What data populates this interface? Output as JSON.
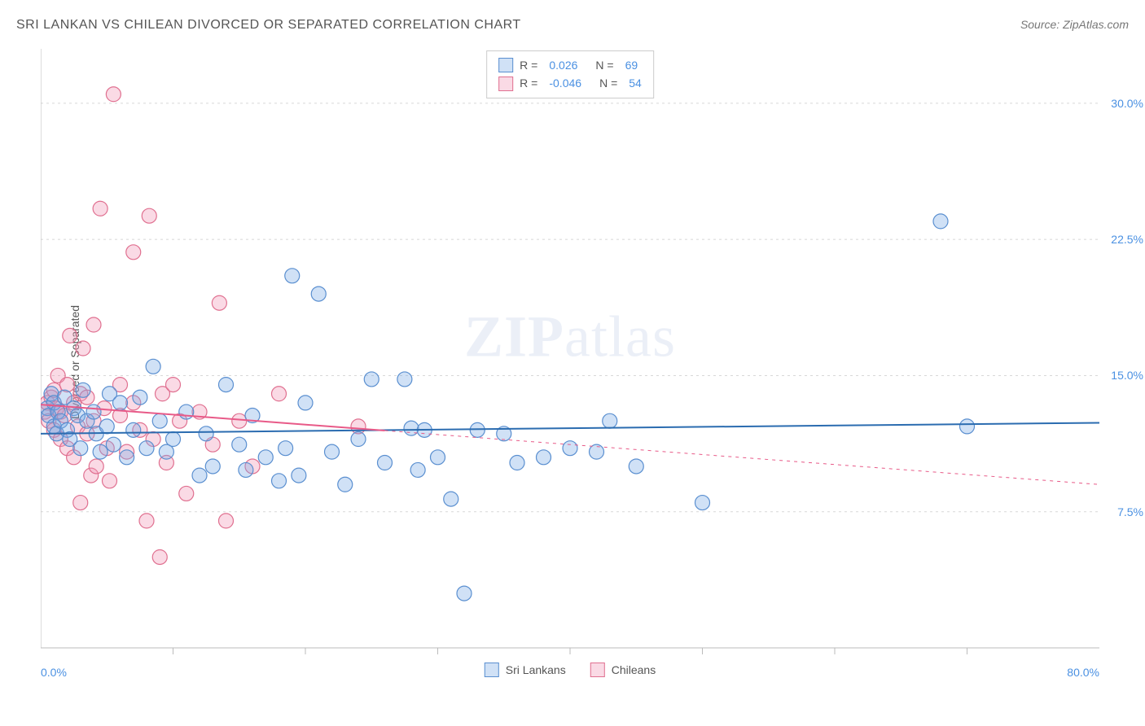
{
  "title": "SRI LANKAN VS CHILEAN DIVORCED OR SEPARATED CORRELATION CHART",
  "source": "Source: ZipAtlas.com",
  "watermark_bold": "ZIP",
  "watermark_rest": "atlas",
  "ylabel": "Divorced or Separated",
  "chart": {
    "type": "scatter",
    "xlim": [
      0,
      80
    ],
    "ylim": [
      0,
      33
    ],
    "x_min_label": "0.0%",
    "x_max_label": "80.0%",
    "x_tick_positions": [
      10,
      20,
      30,
      40,
      50,
      60,
      70
    ],
    "y_ticks": [
      {
        "value": 7.5,
        "label": "7.5%"
      },
      {
        "value": 15.0,
        "label": "15.0%"
      },
      {
        "value": 22.5,
        "label": "22.5%"
      },
      {
        "value": 30.0,
        "label": "30.0%"
      }
    ],
    "background_color": "#ffffff",
    "grid_color": "#d8d8d8",
    "axis_color": "#bbbbbb",
    "marker_radius": 9,
    "marker_stroke_width": 1.2,
    "series": [
      {
        "name": "Sri Lankans",
        "fill_color": "rgba(120,170,230,0.35)",
        "stroke_color": "#5a8fd0",
        "r_value": "0.026",
        "n_value": "69",
        "trend": {
          "x1": 0,
          "y1": 11.8,
          "x2": 80,
          "y2": 12.4,
          "solid_to": 80,
          "color": "#2b6cb0",
          "width": 2
        },
        "points": [
          [
            0.5,
            13.2
          ],
          [
            0.6,
            12.8
          ],
          [
            0.8,
            14.0
          ],
          [
            1.0,
            13.5
          ],
          [
            1.0,
            12.2
          ],
          [
            1.2,
            11.8
          ],
          [
            1.3,
            13.0
          ],
          [
            1.5,
            12.5
          ],
          [
            1.8,
            13.8
          ],
          [
            2.0,
            12.0
          ],
          [
            2.2,
            11.5
          ],
          [
            2.5,
            13.2
          ],
          [
            2.8,
            12.8
          ],
          [
            3.0,
            11.0
          ],
          [
            3.2,
            14.2
          ],
          [
            3.5,
            12.5
          ],
          [
            4.0,
            13.0
          ],
          [
            4.2,
            11.8
          ],
          [
            4.5,
            10.8
          ],
          [
            5.0,
            12.2
          ],
          [
            5.2,
            14.0
          ],
          [
            5.5,
            11.2
          ],
          [
            6.0,
            13.5
          ],
          [
            6.5,
            10.5
          ],
          [
            7.0,
            12.0
          ],
          [
            7.5,
            13.8
          ],
          [
            8.0,
            11.0
          ],
          [
            8.5,
            15.5
          ],
          [
            9.0,
            12.5
          ],
          [
            9.5,
            10.8
          ],
          [
            10.0,
            11.5
          ],
          [
            11.0,
            13.0
          ],
          [
            12.0,
            9.5
          ],
          [
            12.5,
            11.8
          ],
          [
            13.0,
            10.0
          ],
          [
            14.0,
            14.5
          ],
          [
            15.0,
            11.2
          ],
          [
            15.5,
            9.8
          ],
          [
            16.0,
            12.8
          ],
          [
            17.0,
            10.5
          ],
          [
            18.0,
            9.2
          ],
          [
            18.5,
            11.0
          ],
          [
            19.0,
            20.5
          ],
          [
            19.5,
            9.5
          ],
          [
            20.0,
            13.5
          ],
          [
            21.0,
            19.5
          ],
          [
            22.0,
            10.8
          ],
          [
            23.0,
            9.0
          ],
          [
            24.0,
            11.5
          ],
          [
            25.0,
            14.8
          ],
          [
            26.0,
            10.2
          ],
          [
            27.5,
            14.8
          ],
          [
            28.0,
            12.1
          ],
          [
            28.5,
            9.8
          ],
          [
            29.0,
            12.0
          ],
          [
            30.0,
            10.5
          ],
          [
            31.0,
            8.2
          ],
          [
            32.0,
            3.0
          ],
          [
            33.0,
            12.0
          ],
          [
            35.0,
            11.8
          ],
          [
            36.0,
            10.2
          ],
          [
            38.0,
            10.5
          ],
          [
            40.0,
            11.0
          ],
          [
            42.0,
            10.8
          ],
          [
            43.0,
            12.5
          ],
          [
            45.0,
            10.0
          ],
          [
            50.0,
            8.0
          ],
          [
            68.0,
            23.5
          ],
          [
            70.0,
            12.2
          ]
        ]
      },
      {
        "name": "Chileans",
        "fill_color": "rgba(240,150,180,0.35)",
        "stroke_color": "#e07090",
        "r_value": "-0.046",
        "n_value": "54",
        "trend": {
          "x1": 0,
          "y1": 13.4,
          "x2": 80,
          "y2": 9.0,
          "solid_to": 26,
          "color": "#e85a88",
          "width": 2
        },
        "points": [
          [
            0.3,
            13.0
          ],
          [
            0.5,
            13.5
          ],
          [
            0.6,
            12.5
          ],
          [
            0.8,
            13.8
          ],
          [
            1.0,
            14.2
          ],
          [
            1.0,
            12.0
          ],
          [
            1.2,
            13.2
          ],
          [
            1.3,
            15.0
          ],
          [
            1.5,
            11.5
          ],
          [
            1.5,
            13.0
          ],
          [
            1.8,
            12.8
          ],
          [
            2.0,
            14.5
          ],
          [
            2.0,
            11.0
          ],
          [
            2.2,
            17.2
          ],
          [
            2.5,
            13.5
          ],
          [
            2.5,
            10.5
          ],
          [
            2.8,
            12.2
          ],
          [
            3.0,
            8.0
          ],
          [
            3.0,
            14.0
          ],
          [
            3.2,
            16.5
          ],
          [
            3.5,
            11.8
          ],
          [
            3.5,
            13.8
          ],
          [
            3.8,
            9.5
          ],
          [
            4.0,
            17.8
          ],
          [
            4.0,
            12.5
          ],
          [
            4.2,
            10.0
          ],
          [
            4.5,
            24.2
          ],
          [
            4.8,
            13.2
          ],
          [
            5.0,
            11.0
          ],
          [
            5.2,
            9.2
          ],
          [
            5.5,
            30.5
          ],
          [
            6.0,
            12.8
          ],
          [
            6.0,
            14.5
          ],
          [
            6.5,
            10.8
          ],
          [
            7.0,
            13.5
          ],
          [
            7.0,
            21.8
          ],
          [
            7.5,
            12.0
          ],
          [
            8.0,
            7.0
          ],
          [
            8.2,
            23.8
          ],
          [
            8.5,
            11.5
          ],
          [
            9.0,
            5.0
          ],
          [
            9.2,
            14.0
          ],
          [
            9.5,
            10.2
          ],
          [
            10.0,
            14.5
          ],
          [
            10.5,
            12.5
          ],
          [
            11.0,
            8.5
          ],
          [
            12.0,
            13.0
          ],
          [
            13.0,
            11.2
          ],
          [
            13.5,
            19.0
          ],
          [
            14.0,
            7.0
          ],
          [
            15.0,
            12.5
          ],
          [
            16.0,
            10.0
          ],
          [
            18.0,
            14.0
          ],
          [
            24.0,
            12.2
          ]
        ]
      }
    ],
    "legend_bottom": [
      {
        "name": "Sri Lankans",
        "swatch": "blue"
      },
      {
        "name": "Chileans",
        "swatch": "pink"
      }
    ],
    "stats_legend": {
      "r_label": "R =",
      "n_label": "N ="
    }
  }
}
